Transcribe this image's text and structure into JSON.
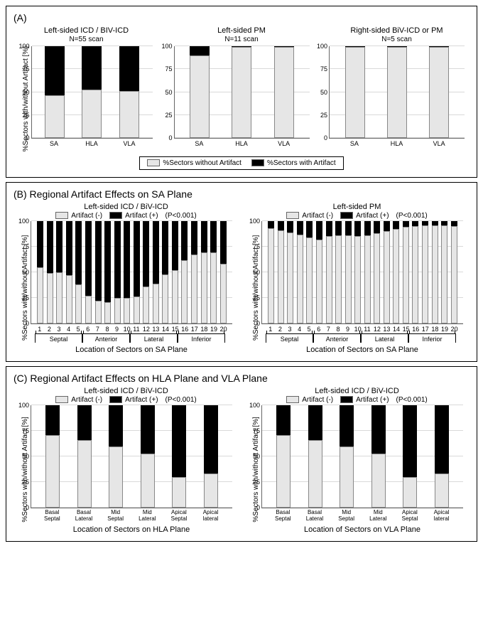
{
  "panelA": {
    "label": "(A)",
    "ylabel": "%Sectors with/without Artifact [%]",
    "yticks": [
      0,
      25,
      50,
      75,
      100
    ],
    "legend": {
      "without": "%Sectors without Artifact",
      "with": "%Sectors with Artifact"
    },
    "charts": [
      {
        "title": "Left-sided ICD / BIV-ICD",
        "subtitle": "N=55 scan",
        "categories": [
          "SA",
          "HLA",
          "VLA"
        ],
        "without": [
          47,
          53,
          51
        ],
        "with": [
          53,
          47,
          49
        ]
      },
      {
        "title": "Left-sided PM",
        "subtitle": "N=11 scan",
        "categories": [
          "SA",
          "HLA",
          "VLA"
        ],
        "without": [
          90,
          99,
          99
        ],
        "with": [
          10,
          1,
          1
        ]
      },
      {
        "title": "Right-sided BiV-ICD or PM",
        "subtitle": "N=5 scan",
        "categories": [
          "SA",
          "HLA",
          "VLA"
        ],
        "without": [
          99,
          99,
          99
        ],
        "with": [
          1,
          1,
          1
        ]
      }
    ]
  },
  "panelB": {
    "label": "(B) Regional Artifact Effects on SA Plane",
    "ylabel": "%Sectors with/without Artifact [%]",
    "yticks": [
      0,
      25,
      50,
      75,
      100
    ],
    "xlabel": "Location of Sectors on SA Plane",
    "legend": {
      "neg": "Artifact (-)",
      "pos": "Artifact (+)"
    },
    "pval": "(P<0.001)",
    "regions": [
      "Septal",
      "Anterior",
      "Lateral",
      "Inferior"
    ],
    "charts": [
      {
        "title": "Left-sided ICD / BiV-ICD",
        "categories": [
          "1",
          "2",
          "3",
          "4",
          "5",
          "6",
          "7",
          "8",
          "9",
          "10",
          "11",
          "12",
          "13",
          "14",
          "15",
          "16",
          "17",
          "18",
          "19",
          "20"
        ],
        "without": [
          55,
          49,
          50,
          47,
          38,
          27,
          22,
          21,
          25,
          25,
          26,
          36,
          39,
          48,
          52,
          62,
          67,
          69,
          69,
          58
        ],
        "with": [
          45,
          51,
          50,
          53,
          62,
          73,
          78,
          79,
          75,
          75,
          74,
          64,
          61,
          52,
          48,
          38,
          33,
          31,
          31,
          42
        ]
      },
      {
        "title": "Left-sided PM",
        "categories": [
          "1",
          "2",
          "3",
          "4",
          "5",
          "6",
          "7",
          "8",
          "9",
          "10",
          "11",
          "12",
          "13",
          "14",
          "15",
          "16",
          "17",
          "18",
          "19",
          "20"
        ],
        "without": [
          93,
          91,
          89,
          87,
          84,
          82,
          85,
          86,
          86,
          85,
          86,
          88,
          90,
          92,
          94,
          95,
          96,
          96,
          96,
          95
        ],
        "with": [
          7,
          9,
          11,
          13,
          16,
          18,
          15,
          14,
          14,
          15,
          14,
          12,
          10,
          8,
          6,
          5,
          4,
          4,
          4,
          5
        ]
      }
    ]
  },
  "panelC": {
    "label": "(C) Regional Artifact Effects on HLA Plane and VLA Plane",
    "ylabel": "%Sectors with/without Artifact [%]",
    "yticks": [
      0,
      25,
      50,
      75,
      100
    ],
    "legend": {
      "neg": "Artifact (-)",
      "pos": "Artifact (+)"
    },
    "pval": "(P<0.001)",
    "charts": [
      {
        "title": "Left-sided ICD / BiV-ICD",
        "xlabel": "Location of Sectors on HLA Plane",
        "categories": [
          "Basal Septal",
          "Basal Lateral",
          "Mid Septal",
          "Mid Lateral",
          "Apical Septal",
          "Apical lateral"
        ],
        "without": [
          71,
          66,
          60,
          53,
          30,
          33
        ],
        "with": [
          29,
          34,
          40,
          47,
          70,
          67
        ]
      },
      {
        "title": "Left-sided ICD / BiV-ICD",
        "xlabel": "Location of Sectors on VLA Plane",
        "categories": [
          "Basal Septal",
          "Basal Lateral",
          "Mid Septal",
          "Mid Lateral",
          "Apical Septal",
          "Apical lateral"
        ],
        "without": [
          71,
          66,
          60,
          53,
          30,
          33
        ],
        "with": [
          29,
          34,
          40,
          47,
          70,
          67
        ]
      }
    ]
  },
  "style": {
    "bar_color_light": "#e6e6e6",
    "bar_color_dark": "#000000",
    "grid_color": "#d9d9d9",
    "axis_color": "#666666",
    "background": "#ffffff"
  }
}
